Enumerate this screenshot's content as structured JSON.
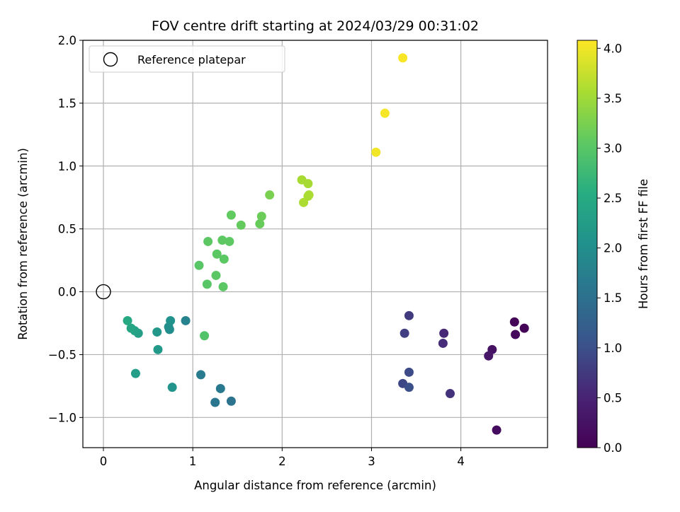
{
  "chart_data": {
    "type": "scatter",
    "title": "FOV centre drift starting at 2024/03/29 00:31:02",
    "xlabel": "Angular distance from reference (arcmin)",
    "ylabel": "Rotation from reference (arcmin)",
    "xlim": [
      -0.23,
      4.97
    ],
    "ylim": [
      -1.24,
      2.0
    ],
    "xticks": [
      0,
      1,
      2,
      3,
      4
    ],
    "xtick_labels": [
      "0",
      "1",
      "2",
      "3",
      "4"
    ],
    "yticks": [
      -1.0,
      -0.5,
      0.0,
      0.5,
      1.0,
      1.5,
      2.0
    ],
    "ytick_labels": [
      "−1.0",
      "−0.5",
      "0.0",
      "0.5",
      "1.0",
      "1.5",
      "2.0"
    ],
    "grid": true,
    "legend": {
      "placement": "upper-left",
      "entries": [
        "Reference platepar"
      ]
    },
    "reference": {
      "name": "Reference platepar",
      "x": 0,
      "y": 0,
      "marker": "hollow-circle",
      "color": "#000000"
    },
    "colorbar": {
      "label": "Hours from first FF file",
      "range": [
        0,
        4.08
      ],
      "ticks": [
        0.0,
        0.5,
        1.0,
        1.5,
        2.0,
        2.5,
        3.0,
        3.5,
        4.0
      ],
      "tick_labels": [
        "0.0",
        "0.5",
        "1.0",
        "1.5",
        "2.0",
        "2.5",
        "3.0",
        "3.5",
        "4.0"
      ],
      "colormap": "viridis"
    },
    "points": [
      {
        "x": 4.71,
        "y": -0.29,
        "c": 0.05
      },
      {
        "x": 4.6,
        "y": -0.24,
        "c": 0.08
      },
      {
        "x": 4.61,
        "y": -0.34,
        "c": 0.1
      },
      {
        "x": 4.4,
        "y": -1.1,
        "c": 0.15
      },
      {
        "x": 4.35,
        "y": -0.46,
        "c": 0.25
      },
      {
        "x": 4.31,
        "y": -0.51,
        "c": 0.3
      },
      {
        "x": 3.81,
        "y": -0.33,
        "c": 0.55
      },
      {
        "x": 3.8,
        "y": -0.41,
        "c": 0.6
      },
      {
        "x": 3.88,
        "y": -0.81,
        "c": 0.65
      },
      {
        "x": 3.42,
        "y": -0.19,
        "c": 0.75
      },
      {
        "x": 3.37,
        "y": -0.33,
        "c": 0.8
      },
      {
        "x": 3.35,
        "y": -0.73,
        "c": 0.9
      },
      {
        "x": 3.42,
        "y": -0.64,
        "c": 0.95
      },
      {
        "x": 3.42,
        "y": -0.76,
        "c": 1.0
      },
      {
        "x": 1.43,
        "y": -0.87,
        "c": 1.55
      },
      {
        "x": 1.25,
        "y": -0.88,
        "c": 1.6
      },
      {
        "x": 1.31,
        "y": -0.77,
        "c": 1.65
      },
      {
        "x": 1.09,
        "y": -0.66,
        "c": 1.7
      },
      {
        "x": 0.92,
        "y": -0.23,
        "c": 1.8
      },
      {
        "x": 0.74,
        "y": -0.3,
        "c": 1.95
      },
      {
        "x": 0.73,
        "y": -0.28,
        "c": 2.0
      },
      {
        "x": 0.75,
        "y": -0.23,
        "c": 2.05
      },
      {
        "x": 0.77,
        "y": -0.76,
        "c": 2.1
      },
      {
        "x": 0.6,
        "y": -0.32,
        "c": 2.15
      },
      {
        "x": 0.61,
        "y": -0.46,
        "c": 2.2
      },
      {
        "x": 0.36,
        "y": -0.65,
        "c": 2.25
      },
      {
        "x": 0.39,
        "y": -0.33,
        "c": 2.3
      },
      {
        "x": 0.35,
        "y": -0.31,
        "c": 2.35
      },
      {
        "x": 0.31,
        "y": -0.29,
        "c": 2.4
      },
      {
        "x": 0.27,
        "y": -0.23,
        "c": 2.45
      },
      {
        "x": 1.13,
        "y": -0.35,
        "c": 2.95
      },
      {
        "x": 1.07,
        "y": 0.21,
        "c": 3.0
      },
      {
        "x": 1.16,
        "y": 0.06,
        "c": 3.0
      },
      {
        "x": 1.26,
        "y": 0.13,
        "c": 3.02
      },
      {
        "x": 1.34,
        "y": 0.04,
        "c": 3.02
      },
      {
        "x": 1.27,
        "y": 0.3,
        "c": 3.04
      },
      {
        "x": 1.35,
        "y": 0.26,
        "c": 3.04
      },
      {
        "x": 1.17,
        "y": 0.4,
        "c": 3.05
      },
      {
        "x": 1.33,
        "y": 0.41,
        "c": 3.06
      },
      {
        "x": 1.41,
        "y": 0.4,
        "c": 3.06
      },
      {
        "x": 1.43,
        "y": 0.61,
        "c": 3.08
      },
      {
        "x": 1.54,
        "y": 0.53,
        "c": 3.1
      },
      {
        "x": 1.75,
        "y": 0.54,
        "c": 3.12
      },
      {
        "x": 1.77,
        "y": 0.6,
        "c": 3.15
      },
      {
        "x": 1.86,
        "y": 0.77,
        "c": 3.25
      },
      {
        "x": 2.22,
        "y": 0.89,
        "c": 3.55
      },
      {
        "x": 2.29,
        "y": 0.86,
        "c": 3.55
      },
      {
        "x": 2.29,
        "y": 0.76,
        "c": 3.57
      },
      {
        "x": 2.3,
        "y": 0.77,
        "c": 3.57
      },
      {
        "x": 2.24,
        "y": 0.71,
        "c": 3.58
      },
      {
        "x": 3.05,
        "y": 1.11,
        "c": 4.0
      },
      {
        "x": 3.15,
        "y": 1.42,
        "c": 4.03
      },
      {
        "x": 3.35,
        "y": 1.86,
        "c": 4.05
      }
    ]
  }
}
